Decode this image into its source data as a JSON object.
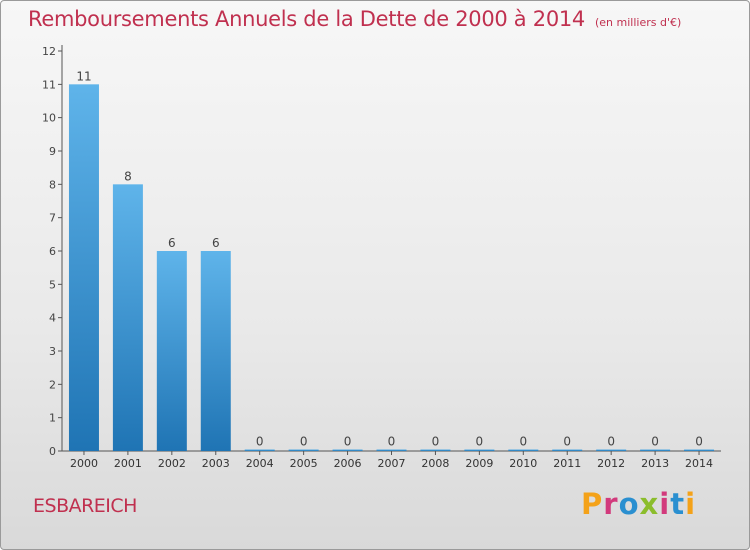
{
  "header": {
    "title": "Remboursements Annuels de la Dette de 2000 à 2014",
    "unit": "(en milliers d'€)"
  },
  "footer": {
    "commune": "ESBAREICH",
    "logo": "Proxiti"
  },
  "colors": {
    "title": "#c0304f",
    "bar_light": "#5fb4ea",
    "bar_dark": "#1f74b4",
    "logo": [
      "#f4a219",
      "#d23a7c",
      "#8bbd2c",
      "#2a8fd0"
    ]
  },
  "chart_data": {
    "type": "bar",
    "title": "Remboursements Annuels de la Dette de 2000 à 2014",
    "xlabel": "",
    "ylabel": "",
    "categories": [
      "2000",
      "2001",
      "2002",
      "2003",
      "2004",
      "2005",
      "2006",
      "2007",
      "2008",
      "2009",
      "2010",
      "2011",
      "2012",
      "2013",
      "2014"
    ],
    "values": [
      11,
      8,
      6,
      6,
      0,
      0,
      0,
      0,
      0,
      0,
      0,
      0,
      0,
      0,
      0
    ],
    "data_labels": [
      "11",
      "8",
      "6",
      "6",
      "0",
      "0",
      "0",
      "0",
      "0",
      "0",
      "0",
      "0",
      "0",
      "0",
      "0"
    ],
    "ylim": [
      0,
      12
    ],
    "yticks": [
      0,
      1,
      2,
      3,
      4,
      5,
      6,
      7,
      8,
      9,
      10,
      11,
      12
    ],
    "grid": false,
    "legend": "none"
  }
}
